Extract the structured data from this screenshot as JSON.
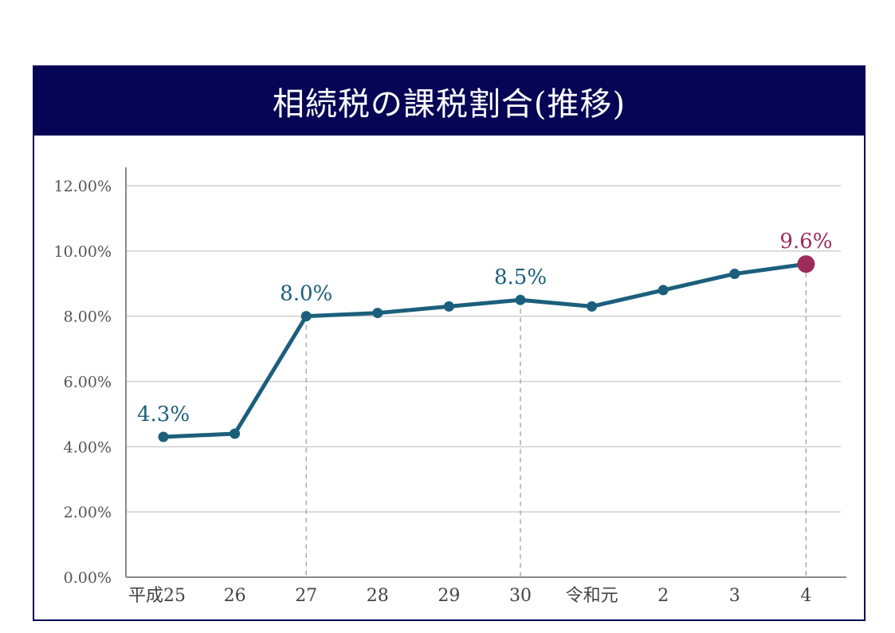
{
  "chart_data": {
    "type": "line",
    "title": "相続税の課税割合(推移)",
    "categories": [
      "平成25",
      "26",
      "27",
      "28",
      "29",
      "30",
      "令和元",
      "2",
      "3",
      "4"
    ],
    "values": [
      4.3,
      4.4,
      8.0,
      8.1,
      8.3,
      8.5,
      8.3,
      8.8,
      9.3,
      9.6
    ],
    "ylim": [
      0,
      12
    ],
    "yticks": [
      "0.00%",
      "2.00%",
      "4.00%",
      "6.00%",
      "8.00%",
      "10.00%",
      "12.00%"
    ],
    "annotations": [
      {
        "index": 0,
        "text": "4.3%"
      },
      {
        "index": 2,
        "text": "8.0%",
        "guide": true
      },
      {
        "index": 5,
        "text": "8.5%",
        "guide": true
      },
      {
        "index": 9,
        "text": "9.6%",
        "guide": true,
        "highlight": true
      }
    ],
    "grid": true,
    "xlabel": "",
    "ylabel": ""
  },
  "colors": {
    "title_bg": "#060555",
    "line": "#1B5F7C",
    "highlight": "#9E2B5B",
    "grid": "#cfcfcf",
    "guide": "#999999"
  }
}
